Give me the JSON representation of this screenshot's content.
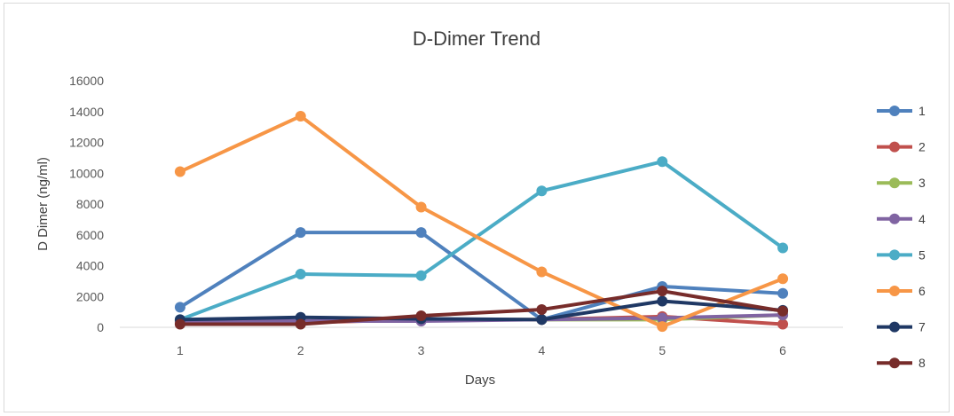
{
  "chart_data": {
    "type": "line",
    "title": "D-Dimer Trend",
    "xlabel": "Days",
    "ylabel": "D Dimer (ng/ml)",
    "x": [
      1,
      2,
      3,
      4,
      5,
      6
    ],
    "ylim": [
      0,
      16000
    ],
    "yticks": [
      0,
      2000,
      4000,
      6000,
      8000,
      10000,
      12000,
      14000,
      16000
    ],
    "grid": "off",
    "legend": "right",
    "series": [
      {
        "name": "1",
        "color": "#4f81bd",
        "values": [
          1300,
          6150,
          6150,
          500,
          2650,
          2200
        ]
      },
      {
        "name": "2",
        "color": "#c0504d",
        "values": [
          300,
          300,
          500,
          500,
          700,
          200
        ]
      },
      {
        "name": "3",
        "color": "#9bbb59",
        "values": [
          400,
          400,
          500,
          500,
          500,
          800
        ]
      },
      {
        "name": "4",
        "color": "#8064a2",
        "values": [
          400,
          400,
          400,
          500,
          600,
          800
        ]
      },
      {
        "name": "5",
        "color": "#4bacc6",
        "values": [
          500,
          3450,
          3350,
          8850,
          10750,
          5150
        ]
      },
      {
        "name": "6",
        "color": "#f79646",
        "values": [
          10100,
          13700,
          7800,
          3600,
          50,
          3150
        ]
      },
      {
        "name": "7",
        "color": "#1f3864",
        "values": [
          500,
          650,
          550,
          500,
          1700,
          1100
        ]
      },
      {
        "name": "8",
        "color": "#772c2a",
        "values": [
          200,
          200,
          750,
          1150,
          2350,
          1050
        ]
      }
    ]
  }
}
